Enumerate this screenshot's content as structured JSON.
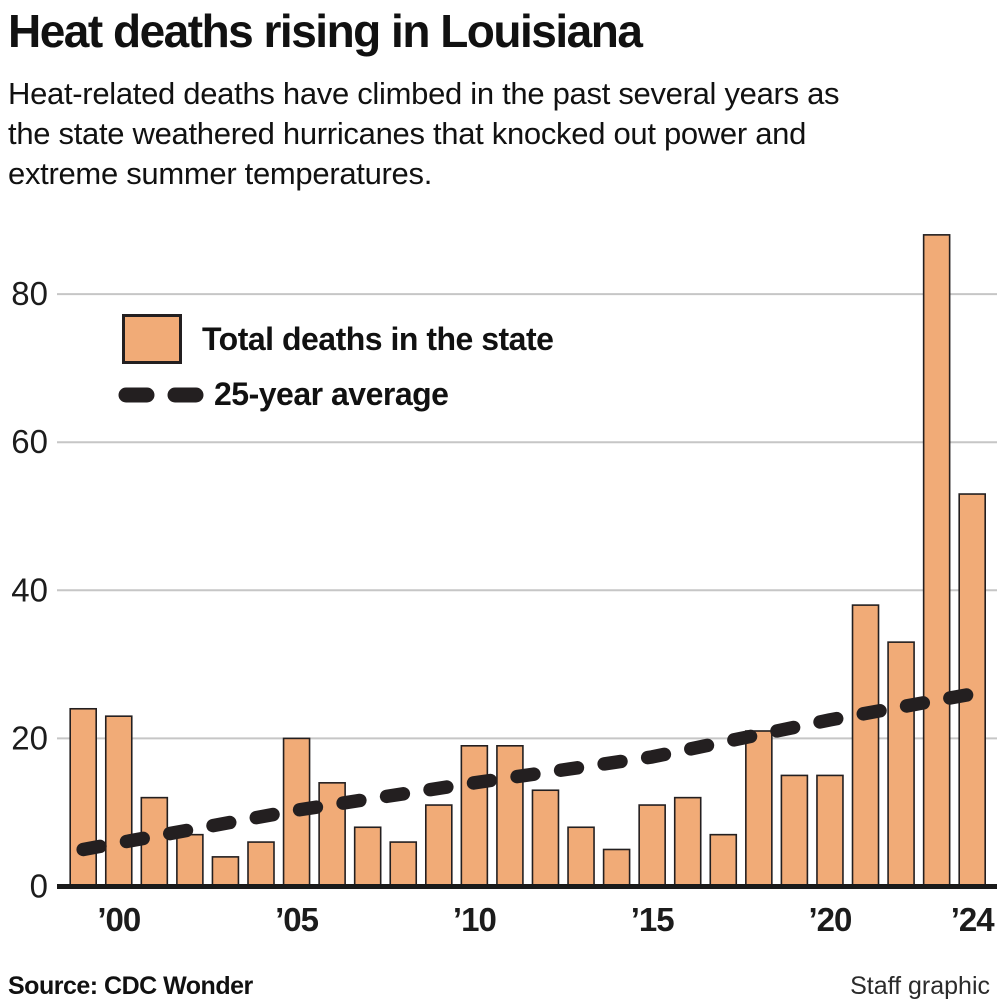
{
  "header": {
    "title": "Heat deaths rising in Louisiana",
    "subtitle_lines": [
      "Heat-related deaths have climbed in the past several years as",
      "the state weathered hurricanes that knocked out power and",
      "extreme summer temperatures."
    ]
  },
  "legend": {
    "bars_label": "Total deaths in the state",
    "avg_label": "25-year average"
  },
  "footer": {
    "source": "Source: CDC Wonder",
    "credit": "Staff graphic"
  },
  "colors": {
    "bar_fill": "#F1AB77",
    "bar_stroke": "#231F20",
    "gridline": "#C6C6C6",
    "axis": "#1A1A1A",
    "tick_text": "#1C1C1C",
    "trend": "#231F20"
  },
  "chart_data": {
    "type": "bar",
    "title": "Heat deaths rising in Louisiana",
    "x": [
      1999,
      2000,
      2001,
      2002,
      2003,
      2004,
      2005,
      2006,
      2007,
      2008,
      2009,
      2010,
      2011,
      2012,
      2013,
      2014,
      2015,
      2016,
      2017,
      2018,
      2019,
      2020,
      2021,
      2022,
      2023,
      2024
    ],
    "values": [
      24,
      23,
      12,
      7,
      4,
      6,
      20,
      14,
      8,
      6,
      11,
      19,
      19,
      13,
      8,
      5,
      11,
      12,
      7,
      21,
      15,
      15,
      38,
      33,
      88,
      53
    ],
    "series_label": "Total deaths in the state",
    "trend": {
      "label": "25-year average",
      "x": [
        1999,
        2005,
        2010,
        2015,
        2020,
        2024
      ],
      "values": [
        5,
        10.3,
        14,
        17.5,
        22.5,
        26
      ]
    },
    "y_ticks": [
      0,
      20,
      40,
      60,
      80
    ],
    "x_tick_labels": [
      {
        "year": 2000,
        "label": "’00"
      },
      {
        "year": 2005,
        "label": "’05"
      },
      {
        "year": 2010,
        "label": "’10"
      },
      {
        "year": 2015,
        "label": "’15"
      },
      {
        "year": 2020,
        "label": "’20"
      },
      {
        "year": 2024,
        "label": "’24"
      }
    ],
    "ylim": [
      0,
      90
    ],
    "grid": true,
    "legend_position": "upper-left"
  }
}
